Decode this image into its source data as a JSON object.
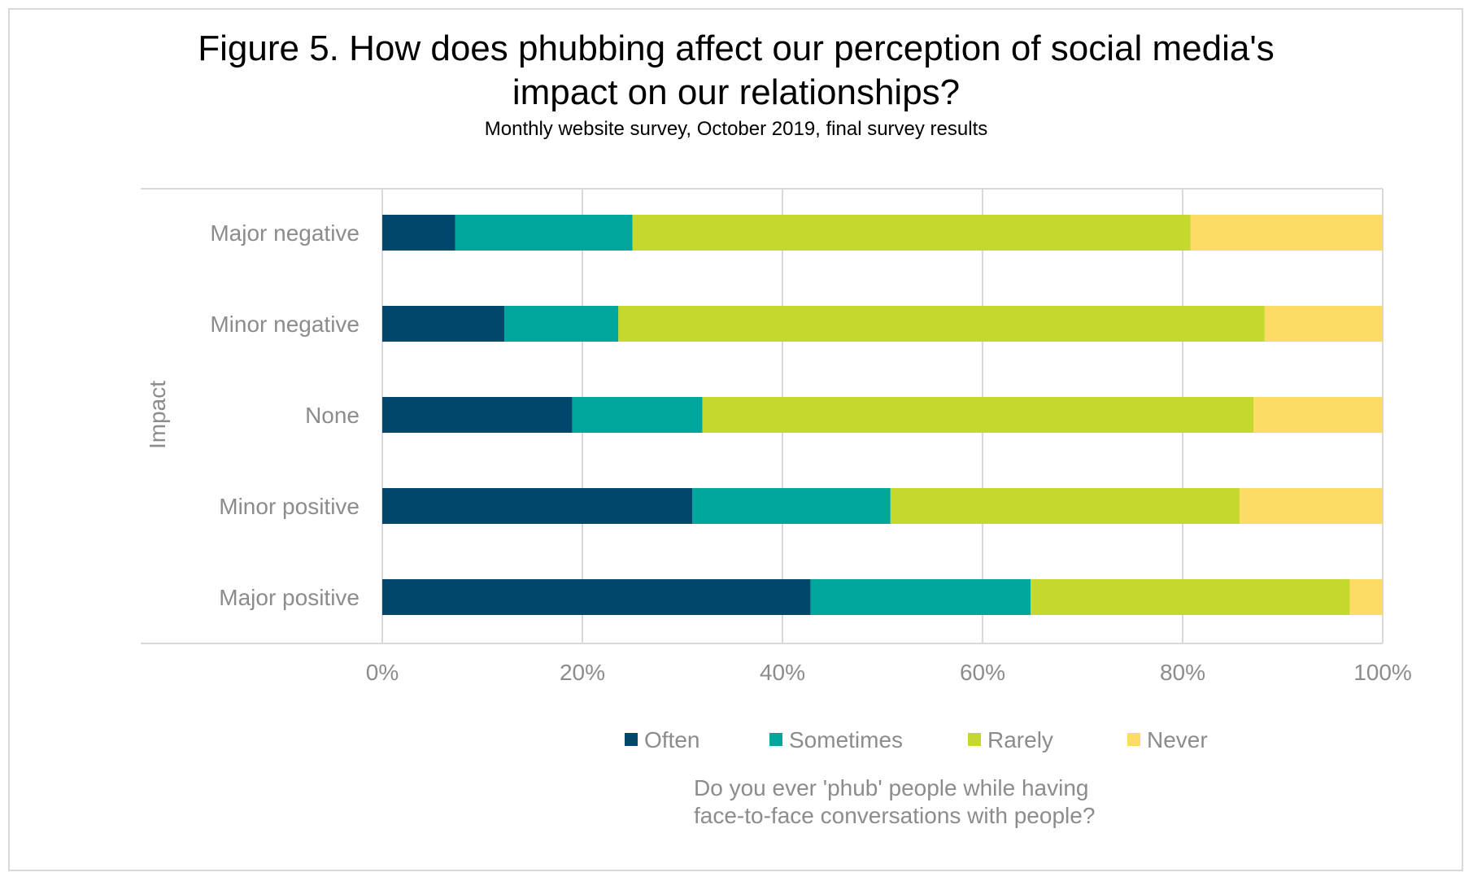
{
  "chart_data": {
    "type": "bar",
    "orientation": "horizontal",
    "stacked": true,
    "percent_stacked": true,
    "title": "Figure 5. How does phubbing affect our perception of social media's impact on our relationships?",
    "title_lines": [
      "Figure 5. How does phubbing affect our perception of social media's",
      "impact on our relationships?"
    ],
    "subtitle": "Monthly website survey, October 2019, final survey results",
    "ylabel": "Impact",
    "legend_title_lines": [
      "Do you ever 'phub' people while having",
      "face-to-face conversations with people?"
    ],
    "categories": [
      "Major negative",
      "Minor negative",
      "None",
      "Minor positive",
      "Major positive"
    ],
    "series": [
      {
        "name": "Often",
        "color": "#00476b",
        "values": [
          7.3,
          12.2,
          19.0,
          31.0,
          42.8
        ]
      },
      {
        "name": "Sometimes",
        "color": "#00a69c",
        "values": [
          17.7,
          11.4,
          13.0,
          19.8,
          22.0
        ]
      },
      {
        "name": "Rarely",
        "color": "#c5d92d",
        "values": [
          55.8,
          64.6,
          55.1,
          34.9,
          31.9
        ]
      },
      {
        "name": "Never",
        "color": "#fcdc66",
        "values": [
          19.2,
          11.8,
          12.9,
          14.3,
          3.3
        ]
      }
    ],
    "xlim": [
      0,
      100
    ],
    "xticks": [
      "0%",
      "20%",
      "40%",
      "60%",
      "80%",
      "100%"
    ],
    "grid": true,
    "legend_position": "bottom"
  }
}
